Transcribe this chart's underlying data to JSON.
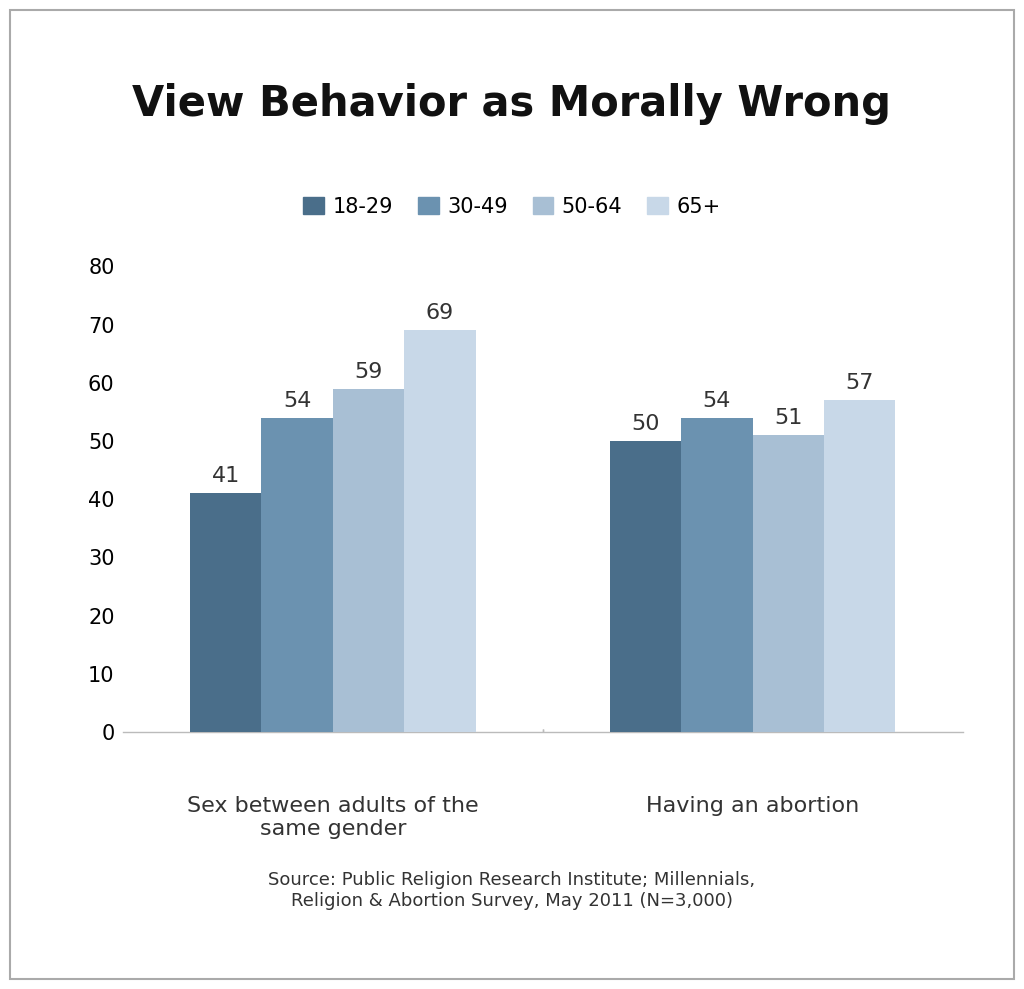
{
  "title": "View Behavior as Morally Wrong",
  "categories": [
    "Sex between adults of the\nsame gender",
    "Having an abortion"
  ],
  "series_labels": [
    "18-29",
    "30-49",
    "50-64",
    "65+"
  ],
  "values": [
    [
      41,
      54,
      59,
      69
    ],
    [
      50,
      54,
      51,
      57
    ]
  ],
  "bar_colors": [
    "#4a6e8a",
    "#6b92b0",
    "#a8bfd4",
    "#c8d8e8"
  ],
  "ylim": [
    0,
    85
  ],
  "yticks": [
    0,
    10,
    20,
    30,
    40,
    50,
    60,
    70,
    80
  ],
  "background_color": "#ffffff",
  "title_fontsize": 30,
  "legend_fontsize": 15,
  "tick_fontsize": 15,
  "label_fontsize": 16,
  "annotation_fontsize": 16,
  "source_text": "Source: Public Religion Research Institute; Millennials,\nReligion & Abortion Survey, May 2011 (N=3,000)"
}
